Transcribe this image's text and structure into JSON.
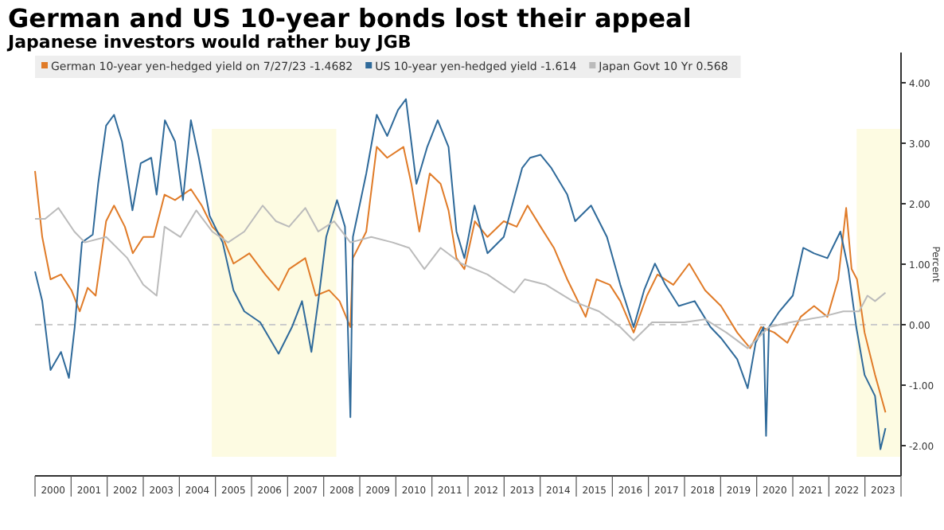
{
  "chart_data": {
    "type": "line",
    "title": "German and US 10-year bonds lost their appeal",
    "subtitle": "Japanese investors would rather buy JGB",
    "ylabel": "Percent",
    "xlim": [
      2000,
      2024
    ],
    "ylim": [
      -2.5,
      4.5
    ],
    "xticks": [
      {
        "value": 2000,
        "label": null
      },
      {
        "value": 2000.5,
        "label": "2000"
      },
      {
        "value": 2001,
        "label": null
      },
      {
        "value": 2001.5,
        "label": "2001"
      },
      {
        "value": 2002,
        "label": null
      },
      {
        "value": 2002.5,
        "label": "2002"
      },
      {
        "value": 2003,
        "label": null
      },
      {
        "value": 2003.5,
        "label": "2003"
      },
      {
        "value": 2004,
        "label": null
      },
      {
        "value": 2004.5,
        "label": "2004"
      },
      {
        "value": 2005,
        "label": null
      },
      {
        "value": 2005.5,
        "label": "2005"
      },
      {
        "value": 2006,
        "label": null
      },
      {
        "value": 2006.5,
        "label": "2006"
      },
      {
        "value": 2007,
        "label": null
      },
      {
        "value": 2007.5,
        "label": "2007"
      },
      {
        "value": 2008,
        "label": null
      },
      {
        "value": 2008.5,
        "label": "2008"
      },
      {
        "value": 2009,
        "label": null
      },
      {
        "value": 2009.5,
        "label": "2009"
      },
      {
        "value": 2010,
        "label": null
      },
      {
        "value": 2010.5,
        "label": "2010"
      },
      {
        "value": 2011,
        "label": null
      },
      {
        "value": 2011.5,
        "label": "2011"
      },
      {
        "value": 2012,
        "label": null
      },
      {
        "value": 2012.5,
        "label": "2012"
      },
      {
        "value": 2013,
        "label": null
      },
      {
        "value": 2013.5,
        "label": "2013"
      },
      {
        "value": 2014,
        "label": null
      },
      {
        "value": 2014.5,
        "label": "2014"
      },
      {
        "value": 2015,
        "label": null
      },
      {
        "value": 2015.5,
        "label": "2015"
      },
      {
        "value": 2016,
        "label": null
      },
      {
        "value": 2016.5,
        "label": "2016"
      },
      {
        "value": 2017,
        "label": null
      },
      {
        "value": 2017.5,
        "label": "2017"
      },
      {
        "value": 2018,
        "label": null
      },
      {
        "value": 2018.5,
        "label": "2018"
      },
      {
        "value": 2019,
        "label": null
      },
      {
        "value": 2019.5,
        "label": "2019"
      },
      {
        "value": 2020,
        "label": null
      },
      {
        "value": 2020.5,
        "label": "2020"
      },
      {
        "value": 2021,
        "label": null
      },
      {
        "value": 2021.5,
        "label": "2021"
      },
      {
        "value": 2022,
        "label": null
      },
      {
        "value": 2022.5,
        "label": "2022"
      },
      {
        "value": 2023,
        "label": null
      },
      {
        "value": 2023.5,
        "label": "2023"
      },
      {
        "value": 2024,
        "label": null
      }
    ],
    "yticks": [
      {
        "value": -2,
        "label": "-2.00"
      },
      {
        "value": -1,
        "label": "-1.00"
      },
      {
        "value": 0,
        "label": "0.00"
      },
      {
        "value": 1,
        "label": "1.00"
      },
      {
        "value": 2,
        "label": "2.00"
      },
      {
        "value": 3,
        "label": "3.00"
      },
      {
        "value": 4,
        "label": "4.00"
      }
    ],
    "grid": false,
    "legend": "top left",
    "marker": "none",
    "line_style": "solid",
    "ref_lines": [
      {
        "axis": "y",
        "value": 0,
        "label": null,
        "color": "#cccccc",
        "line_style": "dashed"
      }
    ],
    "bands": [
      {
        "axis": "x",
        "from": 2004.9,
        "to": 2008.35,
        "label": null,
        "color": "#fdfbe2"
      },
      {
        "axis": "x",
        "from": 2022.77,
        "to": 2024,
        "label": null,
        "color": "#fdfbe2"
      }
    ],
    "series": [
      {
        "name": "German 10-year yen-hedged yield on 7/27/23 -1.4682",
        "color": "#e07b28",
        "x": [
          2000,
          2000.2,
          2000.43,
          2000.72,
          2001.01,
          2001.24,
          2001.46,
          2001.68,
          2001.97,
          2002.19,
          2002.49,
          2002.71,
          2003,
          2003.29,
          2003.59,
          2003.88,
          2004.32,
          2004.62,
          2004.91,
          2005.2,
          2005.5,
          2005.94,
          2006.38,
          2006.75,
          2007.04,
          2007.49,
          2007.78,
          2008.15,
          2008.44,
          2008.74,
          2008.81,
          2009.18,
          2009.47,
          2009.76,
          2010.21,
          2010.43,
          2010.65,
          2010.94,
          2011.24,
          2011.46,
          2011.68,
          2011.9,
          2012.19,
          2012.54,
          2012.99,
          2013.35,
          2013.65,
          2014.01,
          2014.38,
          2014.75,
          2015.26,
          2015.56,
          2015.93,
          2016.22,
          2016.59,
          2016.96,
          2017.25,
          2017.69,
          2018.13,
          2018.57,
          2019.01,
          2019.46,
          2019.82,
          2020.12,
          2020.49,
          2020.85,
          2021.22,
          2021.59,
          2021.96,
          2022.26,
          2022.48,
          2022.63,
          2022.78,
          2022.99,
          2023.28,
          2023.57
        ],
        "values": [
          2.54,
          1.45,
          0.75,
          0.83,
          0.57,
          0.22,
          0.61,
          0.48,
          1.71,
          1.97,
          1.62,
          1.18,
          1.45,
          1.45,
          2.15,
          2.06,
          2.24,
          1.97,
          1.62,
          1.45,
          1.01,
          1.18,
          0.83,
          0.57,
          0.92,
          1.1,
          0.48,
          0.57,
          0.39,
          -0.04,
          1.1,
          1.54,
          2.94,
          2.76,
          2.94,
          2.33,
          1.54,
          2.5,
          2.33,
          1.89,
          1.1,
          0.92,
          1.71,
          1.45,
          1.71,
          1.62,
          1.97,
          1.62,
          1.27,
          0.75,
          0.13,
          0.75,
          0.66,
          0.39,
          -0.13,
          0.48,
          0.83,
          0.66,
          1.01,
          0.57,
          0.31,
          -0.13,
          -0.39,
          -0.04,
          -0.13,
          -0.3,
          0.13,
          0.31,
          0.13,
          0.75,
          1.93,
          0.92,
          0.75,
          -0.13,
          -0.83,
          -1.45
        ]
      },
      {
        "name": "US 10-year yen-hedged yield -1.614",
        "color": "#2f6a9a",
        "x": [
          2000,
          2000.2,
          2000.43,
          2000.72,
          2000.94,
          2001.1,
          2001.3,
          2001.6,
          2001.75,
          2001.97,
          2002.19,
          2002.41,
          2002.7,
          2002.93,
          2003.22,
          2003.37,
          2003.6,
          2003.88,
          2004.1,
          2004.32,
          2004.54,
          2004.84,
          2005.2,
          2005.5,
          2005.8,
          2006.24,
          2006.75,
          2007.12,
          2007.4,
          2007.66,
          2007.85,
          2008.07,
          2008.37,
          2008.59,
          2008.74,
          2008.81,
          2009.18,
          2009.47,
          2009.76,
          2010.06,
          2010.28,
          2010.57,
          2010.87,
          2011.16,
          2011.46,
          2011.68,
          2011.9,
          2012.18,
          2012.54,
          2012.99,
          2013.5,
          2013.72,
          2014.01,
          2014.31,
          2014.75,
          2014.97,
          2015.41,
          2015.85,
          2016.22,
          2016.59,
          2016.88,
          2017.18,
          2017.47,
          2017.84,
          2018.28,
          2018.72,
          2019.01,
          2019.46,
          2019.75,
          2019.97,
          2020.19,
          2020.26,
          2020.34,
          2020.63,
          2021,
          2021.29,
          2021.59,
          2021.96,
          2022.32,
          2022.54,
          2022.76,
          2022.99,
          2023.28,
          2023.43,
          2023.57
        ],
        "values": [
          0.88,
          0.39,
          -0.75,
          -0.45,
          -0.88,
          -0.04,
          1.36,
          1.49,
          2.33,
          3.29,
          3.47,
          3.03,
          1.89,
          2.67,
          2.76,
          2.15,
          3.38,
          3.03,
          2.06,
          3.38,
          2.76,
          1.8,
          1.36,
          0.57,
          0.22,
          0.04,
          -0.48,
          -0.04,
          0.39,
          -0.45,
          0.39,
          1.45,
          2.06,
          1.62,
          -1.53,
          1.45,
          2.5,
          3.47,
          3.12,
          3.55,
          3.73,
          2.33,
          2.94,
          3.38,
          2.94,
          1.54,
          1.1,
          1.97,
          1.18,
          1.45,
          2.59,
          2.76,
          2.81,
          2.59,
          2.15,
          1.71,
          1.97,
          1.45,
          0.66,
          -0.04,
          0.57,
          1.01,
          0.66,
          0.31,
          0.39,
          -0.04,
          -0.22,
          -0.57,
          -1.05,
          -0.3,
          -0.04,
          -1.84,
          -0.04,
          0.22,
          0.48,
          1.27,
          1.18,
          1.1,
          1.54,
          0.92,
          -0.04,
          -0.83,
          -1.18,
          -2.06,
          -1.71
        ]
      },
      {
        "name": "Japan Govt 10 Yr 0.568",
        "color": "#bbbbbb",
        "x": [
          2000,
          2000.28,
          2000.65,
          2001.09,
          2001.38,
          2001.97,
          2002.56,
          2003,
          2003.37,
          2003.59,
          2004.03,
          2004.47,
          2004.91,
          2005.35,
          2005.8,
          2006.31,
          2006.68,
          2007.04,
          2007.49,
          2007.85,
          2008.29,
          2008.74,
          2009.32,
          2009.91,
          2010.37,
          2010.79,
          2011.24,
          2011.82,
          2012.54,
          2013.28,
          2013.57,
          2014.16,
          2014.9,
          2015.63,
          2016.22,
          2016.59,
          2017.1,
          2017.99,
          2018.57,
          2019.16,
          2019.75,
          2020.34,
          2020.93,
          2021.81,
          2022.4,
          2022.84,
          2023.07,
          2023.28,
          2023.57
        ],
        "values": [
          1.75,
          1.75,
          1.93,
          1.54,
          1.36,
          1.45,
          1.1,
          0.66,
          0.48,
          1.62,
          1.45,
          1.89,
          1.54,
          1.36,
          1.54,
          1.97,
          1.71,
          1.62,
          1.93,
          1.54,
          1.71,
          1.36,
          1.45,
          1.36,
          1.27,
          0.92,
          1.27,
          1.01,
          0.83,
          0.53,
          0.75,
          0.66,
          0.39,
          0.22,
          -0.04,
          -0.26,
          0.04,
          0.04,
          0.09,
          -0.13,
          -0.39,
          -0.04,
          0.04,
          0.13,
          0.22,
          0.22,
          0.48,
          0.39,
          0.53
        ]
      }
    ]
  }
}
